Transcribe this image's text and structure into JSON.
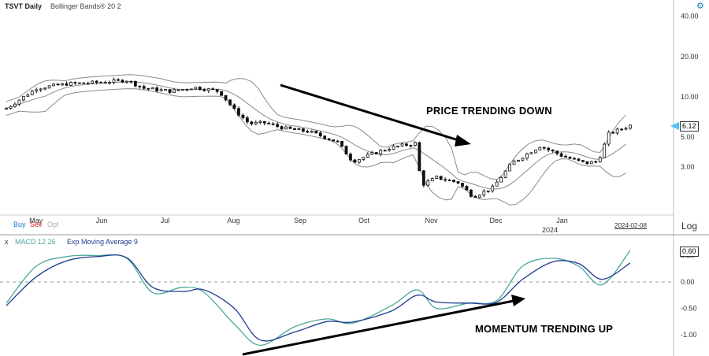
{
  "header": {
    "symbol": "TSVT Daily",
    "overlay": "Bollinger Bands® 20 2"
  },
  "toolbar": {
    "buy": "Buy",
    "sell": "Sell",
    "opt": "Opt",
    "log": "Log",
    "close": "x"
  },
  "annotations": {
    "price": "PRICE TRENDING DOWN",
    "momentum": "MOMENTUM TRENDING UP"
  },
  "last_price": "6.12",
  "last_date": "2024-02-08",
  "macd_last": "0.60",
  "colors": {
    "candle": "#111111",
    "bands": "#8a8a8a",
    "macd": "#1e3d8f",
    "signal": "#4aa89a",
    "buy": "#1a7bbf",
    "sell": "#d32020",
    "opt": "#aaaaaa",
    "gear": "#1a7bbf"
  },
  "chart_data": [
    {
      "type": "candlestick",
      "title": "TSVT Daily",
      "indicator": "Bollinger Bands® 20 2",
      "y_scale": "log",
      "y_ticks": [
        3,
        5,
        10,
        20,
        40
      ],
      "y_tick_labels": [
        "3.00",
        "5.00",
        "10.00",
        "20.00",
        "40.00"
      ],
      "x_labels": [
        "May",
        "Jun",
        "Jul",
        "Aug",
        "Sep",
        "Oct",
        "Nov",
        "Dec",
        "Jan"
      ],
      "x_year_label": "2024",
      "close": [
        {
          "date": "2023-04-24",
          "value": 8.2
        },
        {
          "date": "2023-05-08",
          "value": 11.6
        },
        {
          "date": "2023-05-22",
          "value": 12.5
        },
        {
          "date": "2023-06-05",
          "value": 12.8
        },
        {
          "date": "2023-06-19",
          "value": 13.3
        },
        {
          "date": "2023-06-27",
          "value": 11.6
        },
        {
          "date": "2023-07-10",
          "value": 11.0
        },
        {
          "date": "2023-07-20",
          "value": 11.8
        },
        {
          "date": "2023-08-01",
          "value": 11.0
        },
        {
          "date": "2023-08-08",
          "value": 8.0
        },
        {
          "date": "2023-08-15",
          "value": 6.3
        },
        {
          "date": "2023-08-22",
          "value": 6.4
        },
        {
          "date": "2023-09-01",
          "value": 5.8
        },
        {
          "date": "2023-09-12",
          "value": 5.5
        },
        {
          "date": "2023-09-25",
          "value": 4.6
        },
        {
          "date": "2023-10-02",
          "value": 3.3
        },
        {
          "date": "2023-10-10",
          "value": 3.7
        },
        {
          "date": "2023-10-20",
          "value": 4.2
        },
        {
          "date": "2023-10-31",
          "value": 4.5
        },
        {
          "date": "2023-11-03",
          "value": 2.2
        },
        {
          "date": "2023-11-10",
          "value": 2.5
        },
        {
          "date": "2023-11-20",
          "value": 2.3
        },
        {
          "date": "2023-11-27",
          "value": 1.8
        },
        {
          "date": "2023-12-06",
          "value": 2.1
        },
        {
          "date": "2023-12-15",
          "value": 3.2
        },
        {
          "date": "2023-12-28",
          "value": 4.3
        },
        {
          "date": "2024-01-08",
          "value": 3.6
        },
        {
          "date": "2024-01-18",
          "value": 3.2
        },
        {
          "date": "2024-01-24",
          "value": 3.3
        },
        {
          "date": "2024-01-29",
          "value": 5.3
        },
        {
          "date": "2024-02-08",
          "value": 6.12
        }
      ]
    },
    {
      "type": "line",
      "title": "MACD 12 26",
      "signal_label": "Exp Moving Average 9",
      "y_ticks": [
        -1.0,
        -0.5,
        0.0,
        0.5
      ],
      "y_tick_labels": [
        "-1.00",
        "-0.50",
        "0.00",
        "0.50"
      ],
      "series": [
        {
          "name": "MACD 12 26",
          "values": [
            {
              "date": "2023-04-24",
              "value": -0.4
            },
            {
              "date": "2023-05-08",
              "value": 0.3
            },
            {
              "date": "2023-05-22",
              "value": 0.48
            },
            {
              "date": "2023-06-05",
              "value": 0.5
            },
            {
              "date": "2023-06-19",
              "value": 0.45
            },
            {
              "date": "2023-07-01",
              "value": -0.2
            },
            {
              "date": "2023-07-15",
              "value": -0.1
            },
            {
              "date": "2023-07-25",
              "value": -0.2
            },
            {
              "date": "2023-08-08",
              "value": -0.8
            },
            {
              "date": "2023-08-20",
              "value": -1.2
            },
            {
              "date": "2023-09-05",
              "value": -0.85
            },
            {
              "date": "2023-09-20",
              "value": -0.7
            },
            {
              "date": "2023-10-02",
              "value": -0.78
            },
            {
              "date": "2023-10-20",
              "value": -0.45
            },
            {
              "date": "2023-11-01",
              "value": -0.15
            },
            {
              "date": "2023-11-10",
              "value": -0.5
            },
            {
              "date": "2023-11-25",
              "value": -0.4
            },
            {
              "date": "2023-12-08",
              "value": -0.35
            },
            {
              "date": "2023-12-20",
              "value": 0.3
            },
            {
              "date": "2024-01-03",
              "value": 0.45
            },
            {
              "date": "2024-01-15",
              "value": 0.3
            },
            {
              "date": "2024-01-26",
              "value": -0.05
            },
            {
              "date": "2024-02-08",
              "value": 0.6
            }
          ]
        },
        {
          "name": "Exp Moving Average 9",
          "values": [
            {
              "date": "2023-04-24",
              "value": -0.45
            },
            {
              "date": "2023-05-08",
              "value": 0.1
            },
            {
              "date": "2023-05-22",
              "value": 0.4
            },
            {
              "date": "2023-06-05",
              "value": 0.48
            },
            {
              "date": "2023-06-19",
              "value": 0.46
            },
            {
              "date": "2023-07-01",
              "value": -0.1
            },
            {
              "date": "2023-07-15",
              "value": -0.18
            },
            {
              "date": "2023-07-25",
              "value": -0.15
            },
            {
              "date": "2023-08-08",
              "value": -0.5
            },
            {
              "date": "2023-08-20",
              "value": -1.1
            },
            {
              "date": "2023-09-05",
              "value": -0.95
            },
            {
              "date": "2023-09-20",
              "value": -0.75
            },
            {
              "date": "2023-10-02",
              "value": -0.76
            },
            {
              "date": "2023-10-20",
              "value": -0.55
            },
            {
              "date": "2023-11-01",
              "value": -0.25
            },
            {
              "date": "2023-11-10",
              "value": -0.38
            },
            {
              "date": "2023-11-25",
              "value": -0.4
            },
            {
              "date": "2023-12-08",
              "value": -0.38
            },
            {
              "date": "2023-12-20",
              "value": 0.05
            },
            {
              "date": "2024-01-03",
              "value": 0.38
            },
            {
              "date": "2024-01-15",
              "value": 0.35
            },
            {
              "date": "2024-01-26",
              "value": 0.05
            },
            {
              "date": "2024-02-08",
              "value": 0.36
            }
          ]
        }
      ]
    }
  ]
}
